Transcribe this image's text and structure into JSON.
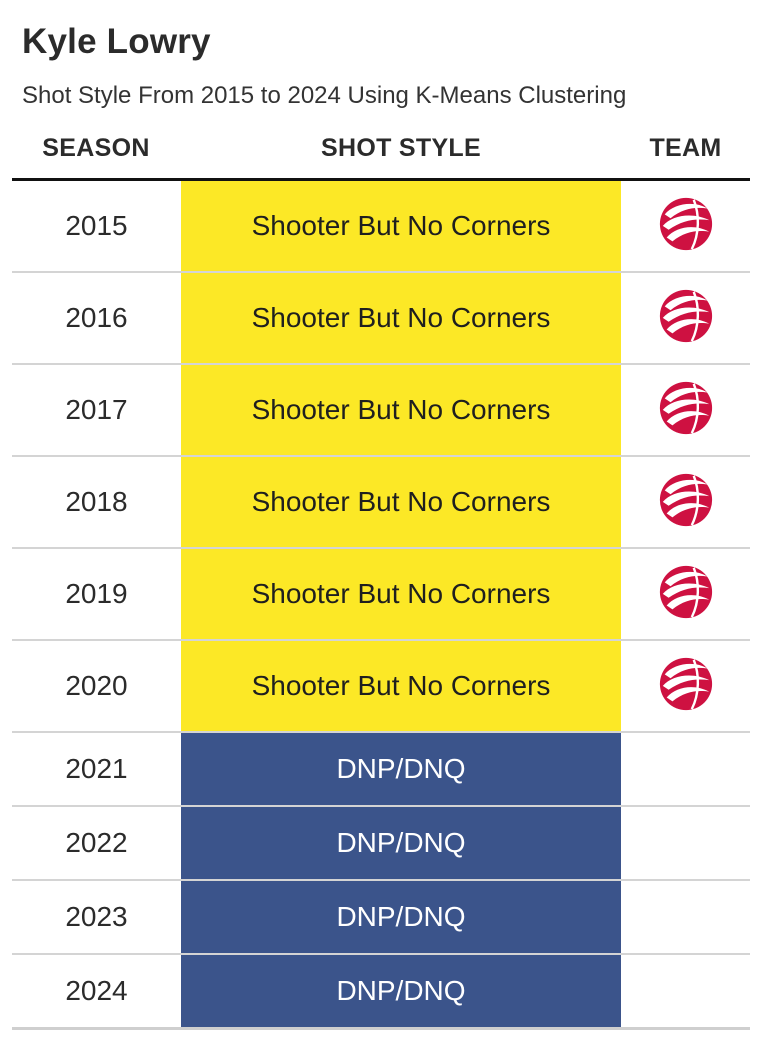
{
  "header": {
    "title": "Kyle Lowry",
    "subtitle": "Shot Style From 2015 to 2024 Using K-Means Clustering"
  },
  "columns": {
    "season": "SEASON",
    "shot_style": "SHOT STYLE",
    "team": "TEAM"
  },
  "colors": {
    "shooter_fill": "#fce826",
    "shooter_text": "#1f1f1f",
    "dnp_fill": "#3b548b",
    "dnp_text": "#ffffff",
    "raptors_red": "#ce1141"
  },
  "rows": [
    {
      "season": "2015",
      "style": "Shooter But No Corners",
      "category": "shooter",
      "team_icon": "raptors-logo-icon"
    },
    {
      "season": "2016",
      "style": "Shooter But No Corners",
      "category": "shooter",
      "team_icon": "raptors-logo-icon"
    },
    {
      "season": "2017",
      "style": "Shooter But No Corners",
      "category": "shooter",
      "team_icon": "raptors-logo-icon"
    },
    {
      "season": "2018",
      "style": "Shooter But No Corners",
      "category": "shooter",
      "team_icon": "raptors-logo-icon"
    },
    {
      "season": "2019",
      "style": "Shooter But No Corners",
      "category": "shooter",
      "team_icon": "raptors-logo-icon"
    },
    {
      "season": "2020",
      "style": "Shooter But No Corners",
      "category": "shooter",
      "team_icon": "raptors-logo-icon"
    },
    {
      "season": "2021",
      "style": "DNP/DNQ",
      "category": "dnp",
      "team_icon": ""
    },
    {
      "season": "2022",
      "style": "DNP/DNQ",
      "category": "dnp",
      "team_icon": ""
    },
    {
      "season": "2023",
      "style": "DNP/DNQ",
      "category": "dnp",
      "team_icon": ""
    },
    {
      "season": "2024",
      "style": "DNP/DNQ",
      "category": "dnp",
      "team_icon": ""
    }
  ]
}
